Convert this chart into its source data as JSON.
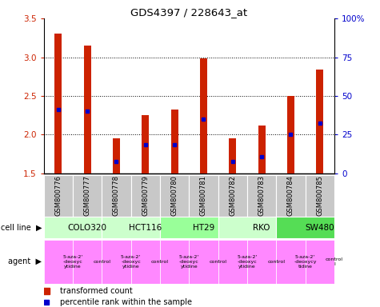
{
  "title": "GDS4397 / 228643_at",
  "samples": [
    "GSM800776",
    "GSM800777",
    "GSM800778",
    "GSM800779",
    "GSM800780",
    "GSM800781",
    "GSM800782",
    "GSM800783",
    "GSM800784",
    "GSM800785"
  ],
  "red_values": [
    3.3,
    3.15,
    1.95,
    2.25,
    2.32,
    2.98,
    1.95,
    2.12,
    2.5,
    2.84
  ],
  "blue_values": [
    2.32,
    2.3,
    1.65,
    1.87,
    1.87,
    2.2,
    1.65,
    1.72,
    2.0,
    2.15
  ],
  "ylim_left": [
    1.5,
    3.5
  ],
  "ylim_right": [
    0,
    100
  ],
  "yticks_left": [
    1.5,
    2.0,
    2.5,
    3.0,
    3.5
  ],
  "yticks_right": [
    0,
    25,
    50,
    75,
    100
  ],
  "cell_line_data": [
    {
      "label": "COLO320",
      "start": 0,
      "end": 2,
      "color": "#ccffcc"
    },
    {
      "label": "HCT116",
      "start": 2,
      "end": 4,
      "color": "#ccffcc"
    },
    {
      "label": "HT29",
      "start": 4,
      "end": 6,
      "color": "#99ff99"
    },
    {
      "label": "RKO",
      "start": 6,
      "end": 8,
      "color": "#ccffcc"
    },
    {
      "label": "SW480",
      "start": 8,
      "end": 10,
      "color": "#55dd55"
    }
  ],
  "agent_data": [
    {
      "label": "5-aza-2'\n-deoxyc\nytidine",
      "start": 0,
      "end": 1
    },
    {
      "label": "control",
      "start": 1,
      "end": 2
    },
    {
      "label": "5-aza-2'\n-deoxyc\nytidine",
      "start": 2,
      "end": 3
    },
    {
      "label": "control",
      "start": 3,
      "end": 4
    },
    {
      "label": "5-aza-2'\n-deoxyc\nytidine",
      "start": 4,
      "end": 5
    },
    {
      "label": "control",
      "start": 5,
      "end": 6
    },
    {
      "label": "5-aza-2'\n-deoxyc\nytidine",
      "start": 6,
      "end": 7
    },
    {
      "label": "control",
      "start": 7,
      "end": 8
    },
    {
      "label": "5-aza-2'\n-deoxycy\ntidine",
      "start": 8,
      "end": 9
    },
    {
      "label": "control\nl",
      "start": 9,
      "end": 10
    }
  ],
  "bar_color": "#cc2200",
  "dot_color": "#0000cc",
  "label_color_left": "#cc2200",
  "label_color_right": "#0000cc",
  "bg_sample_color": "#c8c8c8",
  "agent_color": "#ff88ff",
  "legend_red": "transformed count",
  "legend_blue": "percentile rank within the sample"
}
